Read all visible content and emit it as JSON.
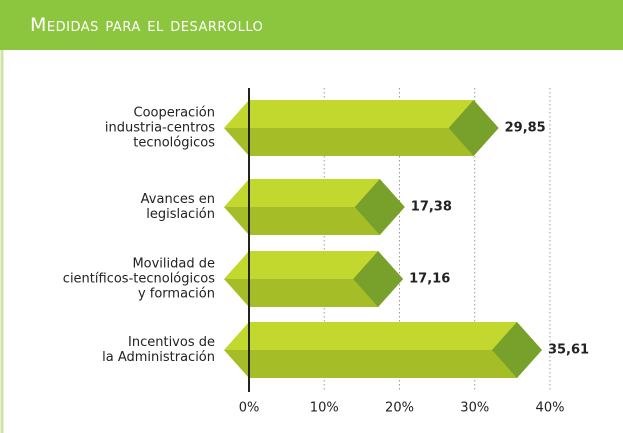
{
  "chart_data": {
    "type": "bar",
    "orientation": "horizontal",
    "title": "Medidas para el desarrollo",
    "categories": [
      "Cooperación\nindustria-centros\ntecnológicos",
      "Avances en\nlegislación",
      "Movilidad de\ncientíficos-tecnológicos\ny formación",
      "Incentivos de\nla Administración"
    ],
    "values": [
      29.85,
      17.38,
      17.16,
      35.61
    ],
    "value_labels": [
      "29,85",
      "17,38",
      "17,16",
      "35,61"
    ],
    "color": "#b5cc2e",
    "xlim": [
      0,
      40
    ],
    "xticks": [
      {
        "value": 0,
        "label": "0%"
      },
      {
        "value": 10,
        "label": "10%"
      },
      {
        "value": 20,
        "label": "20%"
      },
      {
        "value": 30,
        "label": "30%"
      },
      {
        "value": 40,
        "label": "40%"
      }
    ],
    "grid": true
  }
}
